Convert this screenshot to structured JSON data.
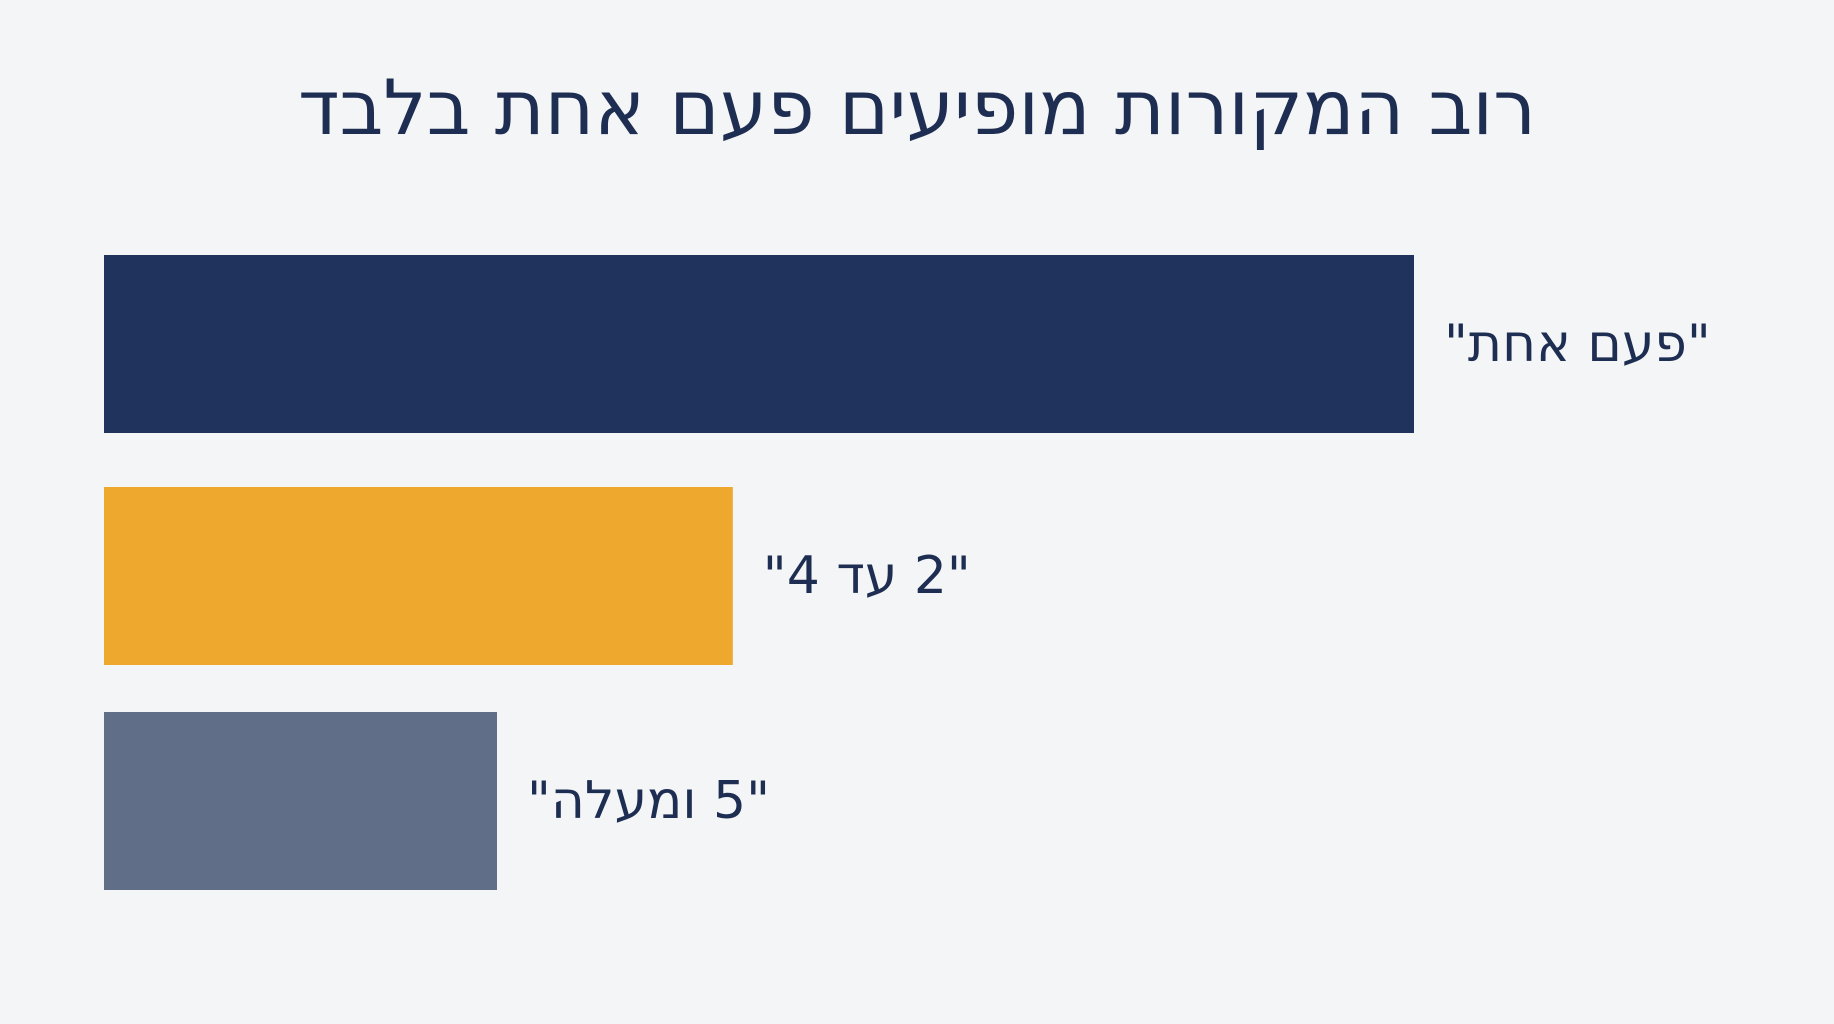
{
  "chart_data": {
    "type": "bar",
    "orientation": "horizontal",
    "title": "רוב המקורות מופיעים פעם אחת בלבד",
    "categories": [
      "\"פעם אחת\"",
      "\"2 עד 4\"",
      "\"5 ומעלה\""
    ],
    "values": [
      100,
      48,
      30
    ],
    "colors": [
      "#1f335d",
      "#eda82d",
      "#606e88"
    ],
    "xlim": [
      0,
      100
    ],
    "grid": false,
    "legend": "none",
    "xlabel": "",
    "ylabel": ""
  }
}
